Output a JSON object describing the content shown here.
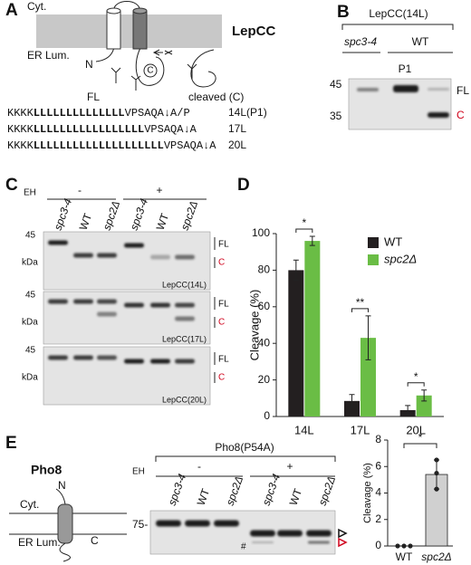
{
  "panels": {
    "A": {
      "label": "A",
      "cyt": "Cyt.",
      "name": "LepCC",
      "lumen": "ER Lum.",
      "n_term": "N",
      "c_term": "C",
      "full_length": "FL",
      "cleaved": "cleaved (C)",
      "sequences": [
        {
          "prefix": "KKKK",
          "core": "LLLLLLLLLLLLLL",
          "suffix": "VPSAQA↓A/P",
          "label": "14L(P1)"
        },
        {
          "prefix": "KKKK",
          "core": "LLLLLLLLLLLLLLLLL",
          "suffix": "VPSAQA↓A",
          "label": "17L"
        },
        {
          "prefix": "KKKK",
          "core": "LLLLLLLLLLLLLLLLLLLL",
          "suffix": "VPSAQA↓A",
          "label": "20L"
        }
      ]
    },
    "B": {
      "label": "B",
      "title": "LepCC(14L)",
      "groups": [
        "spc3-4",
        "WT"
      ],
      "sub": "P1",
      "mw": [
        "45",
        "35"
      ],
      "bands": [
        "FL",
        "C"
      ]
    },
    "C": {
      "label": "C",
      "eh": "EH",
      "treatments": [
        "-",
        "+"
      ],
      "lanes": [
        "spc3-4",
        "WT",
        "spc2Δ",
        "spc3-4",
        "WT",
        "spc2Δ"
      ],
      "blots": [
        "LepCC(14L)",
        "LepCC(17L)",
        "LepCC(20L)"
      ],
      "mw": "45",
      "unit": "kDa",
      "bands": [
        "FL",
        "C"
      ]
    },
    "D": {
      "label": "D"
    },
    "E": {
      "label": "E",
      "protein": "Pho8",
      "n_term": "N",
      "cyt": "Cyt.",
      "lumen": "ER Lum.",
      "c_term": "C",
      "blot_title": "Pho8(P54A)",
      "eh": "EH",
      "treatments": [
        "-",
        "+"
      ],
      "lanes": [
        "spc3-4",
        "WT",
        "spc2Δ",
        "spc3-4",
        "WT",
        "spc2Δ"
      ],
      "mw": "75-",
      "marker": "#"
    }
  },
  "chart_data": [
    {
      "type": "bar",
      "ylabel": "Cleavage (%)",
      "categories": [
        "14L",
        "17L",
        "20L"
      ],
      "series": [
        {
          "name": "WT",
          "color": "#231f20",
          "values": [
            80,
            8.5,
            3.5
          ],
          "errors": [
            5.5,
            3.5,
            2.5
          ]
        },
        {
          "name": "spc2Δ",
          "color": "#6abd45",
          "values": [
            96,
            43,
            11.5
          ],
          "errors": [
            2.5,
            12,
            3
          ]
        }
      ],
      "ylim": [
        0,
        100
      ],
      "yticks": [
        0,
        20,
        40,
        60,
        80,
        100
      ],
      "significance": [
        "*",
        "**",
        "*"
      ],
      "legend": "upper right"
    },
    {
      "type": "dotbar",
      "ylabel": "Cleavage (%)",
      "categories": [
        "WT",
        "spc2Δ"
      ],
      "values": [
        0,
        5.4
      ],
      "errors": [
        0,
        1.1
      ],
      "points": [
        [
          0,
          0,
          0
        ],
        [
          6.5,
          5.5,
          4.3
        ]
      ],
      "color": "#d0d0d0",
      "point_color": "#222",
      "ylim": [
        0,
        8
      ],
      "yticks": [
        0,
        2,
        4,
        6,
        8
      ],
      "significance": "*"
    }
  ]
}
